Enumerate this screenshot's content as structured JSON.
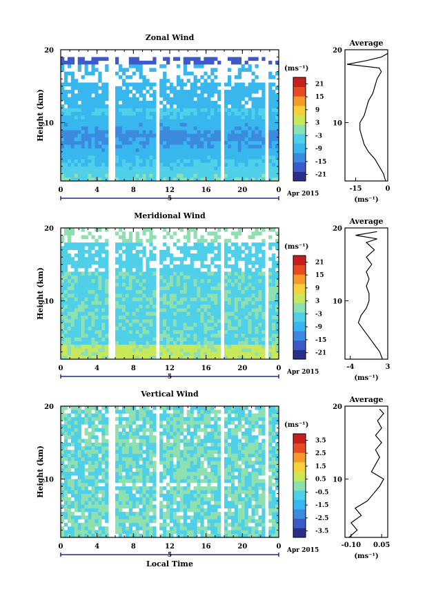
{
  "chart_data": [
    {
      "type": "heatmap",
      "title": "Zonal Wind",
      "ylabel": "Height (km)",
      "y_ticks": [
        "10",
        "20"
      ],
      "ylim": [
        2,
        20
      ],
      "x_ticks": [
        "0",
        "4",
        "8",
        "12",
        "16",
        "20",
        "0"
      ],
      "xlim": [
        0,
        24
      ],
      "day_label": "5",
      "date_label": "Apr 2015",
      "colorbar": {
        "unit": "(ms⁻¹)",
        "labels": [
          "21",
          "15",
          "9",
          "3",
          "-3",
          "-9",
          "-15",
          "-21"
        ],
        "range": [
          -24,
          24
        ]
      },
      "profile": {
        "title": "Average",
        "unit": "(ms⁻¹)",
        "x_ticks": [
          "-15",
          "0"
        ],
        "y_ticks": [
          "10",
          "20"
        ],
        "xlim": [
          -20,
          0
        ],
        "points": [
          [
            -1,
            2
          ],
          [
            -2,
            3
          ],
          [
            -4,
            4
          ],
          [
            -6,
            5
          ],
          [
            -9,
            6
          ],
          [
            -11,
            7
          ],
          [
            -12,
            8
          ],
          [
            -13,
            9
          ],
          [
            -13,
            10
          ],
          [
            -11,
            11
          ],
          [
            -10,
            12
          ],
          [
            -9,
            13
          ],
          [
            -7,
            14
          ],
          [
            -6,
            15
          ],
          [
            -5,
            16
          ],
          [
            -3,
            17
          ],
          [
            -4,
            17.5
          ],
          [
            -19,
            18
          ],
          [
            -10,
            18.5
          ],
          [
            -3,
            19
          ],
          [
            0,
            19.5
          ]
        ]
      }
    },
    {
      "type": "heatmap",
      "title": "Meridional Wind",
      "ylabel": "Height (km)",
      "y_ticks": [
        "10",
        "20"
      ],
      "ylim": [
        2,
        20
      ],
      "x_ticks": [
        "0",
        "4",
        "8",
        "12",
        "16",
        "20",
        "0"
      ],
      "xlim": [
        0,
        24
      ],
      "day_label": "5",
      "date_label": "Apr 2015",
      "colorbar": {
        "unit": "(ms⁻¹)",
        "labels": [
          "21",
          "15",
          "9",
          "3",
          "-3",
          "-9",
          "-15",
          "-21"
        ],
        "range": [
          -24,
          24
        ]
      },
      "profile": {
        "title": "Average",
        "unit": "(ms⁻¹)",
        "x_ticks": [
          "-4",
          "3"
        ],
        "y_ticks": [
          "10",
          "20"
        ],
        "xlim": [
          -5,
          3
        ],
        "points": [
          [
            2,
            2
          ],
          [
            1.5,
            3
          ],
          [
            0.5,
            4
          ],
          [
            -0.5,
            5
          ],
          [
            -1.5,
            6
          ],
          [
            -2.5,
            7
          ],
          [
            -2,
            8
          ],
          [
            -1,
            9
          ],
          [
            -0.5,
            10
          ],
          [
            -0.5,
            11
          ],
          [
            -1,
            12
          ],
          [
            -0.5,
            13
          ],
          [
            -1,
            14
          ],
          [
            0,
            15
          ],
          [
            -1,
            16
          ],
          [
            0.5,
            17
          ],
          [
            -1,
            18
          ],
          [
            1,
            18.5
          ],
          [
            -3,
            19
          ],
          [
            1,
            19.5
          ]
        ]
      }
    },
    {
      "type": "heatmap",
      "title": "Vertical Wind",
      "ylabel": "Height (km)",
      "y_ticks": [
        "10",
        "20"
      ],
      "ylim": [
        2,
        20
      ],
      "x_ticks": [
        "0",
        "4",
        "8",
        "12",
        "16",
        "20",
        "0"
      ],
      "xlim": [
        0,
        24
      ],
      "day_label": "5",
      "date_label": "Apr 2015",
      "xlabel": "Local Time",
      "colorbar": {
        "unit": "(ms⁻¹)",
        "labels": [
          "3.5",
          "2.5",
          "1.5",
          "0.5",
          "-0.5",
          "-1.5",
          "-2.5",
          "-3.5"
        ],
        "range": [
          -4,
          4
        ]
      },
      "profile": {
        "title": "Average",
        "unit": "(ms⁻¹)",
        "x_ticks": [
          "-0.10",
          "0.05"
        ],
        "y_ticks": [
          "10",
          "20"
        ],
        "xlim": [
          -0.13,
          0.08
        ],
        "points": [
          [
            -0.11,
            2
          ],
          [
            -0.07,
            3
          ],
          [
            -0.1,
            4
          ],
          [
            -0.05,
            5
          ],
          [
            -0.08,
            6
          ],
          [
            -0.02,
            7
          ],
          [
            0.01,
            8
          ],
          [
            0.04,
            9
          ],
          [
            0.06,
            10
          ],
          [
            0.0,
            11
          ],
          [
            0.02,
            12
          ],
          [
            0.04,
            13
          ],
          [
            0.02,
            14
          ],
          [
            0.05,
            15
          ],
          [
            0.02,
            16
          ],
          [
            0.05,
            17
          ],
          [
            0.03,
            18
          ],
          [
            0.06,
            19
          ],
          [
            0.04,
            19.6
          ]
        ]
      }
    }
  ],
  "colormap": [
    "#2b2e86",
    "#3d5ac8",
    "#3b8ae0",
    "#38b7ee",
    "#4fd0e8",
    "#8ee0b0",
    "#c8e85a",
    "#f4d23a",
    "#f39a2a",
    "#e84a25",
    "#c81e1e"
  ]
}
